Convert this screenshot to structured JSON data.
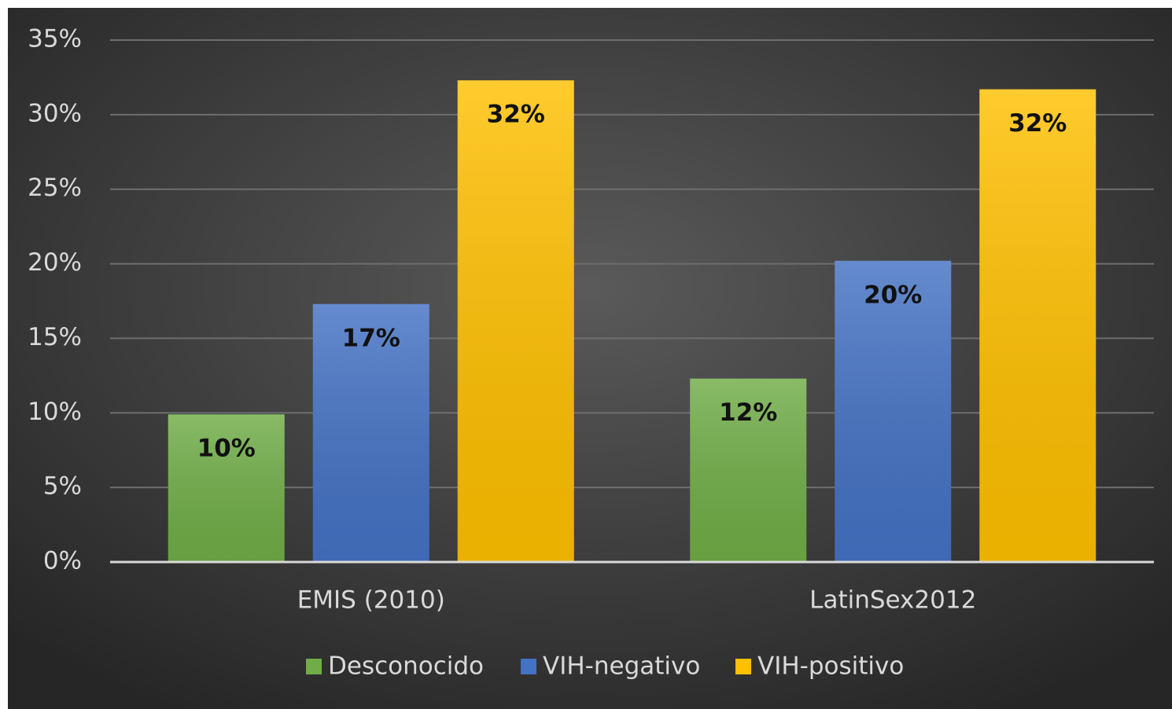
{
  "chart_data": {
    "type": "bar",
    "categories": [
      "EMIS (2010)",
      "LatinSex2012"
    ],
    "series": [
      {
        "name": "Desconocido",
        "color": "#70ad47",
        "values": [
          9.9,
          12.3
        ],
        "value_labels": [
          "10%",
          "12%"
        ]
      },
      {
        "name": "VIH-negativo",
        "color": "#4472c4",
        "values": [
          17.3,
          20.2
        ],
        "value_labels": [
          "17%",
          "20%"
        ]
      },
      {
        "name": "VIH-positivo",
        "color": "#ffc000",
        "values": [
          32.3,
          31.7
        ],
        "value_labels": [
          "32%",
          "32%"
        ]
      }
    ],
    "ylim": [
      0,
      35
    ],
    "yticks": [
      {
        "value": 0,
        "label": "0%"
      },
      {
        "value": 5,
        "label": "5%"
      },
      {
        "value": 10,
        "label": "10%"
      },
      {
        "value": 15,
        "label": "15%"
      },
      {
        "value": 20,
        "label": "20%"
      },
      {
        "value": 25,
        "label": "25%"
      },
      {
        "value": 30,
        "label": "30%"
      },
      {
        "value": 35,
        "label": "35%"
      }
    ],
    "grid": true,
    "legend": "bottom"
  }
}
